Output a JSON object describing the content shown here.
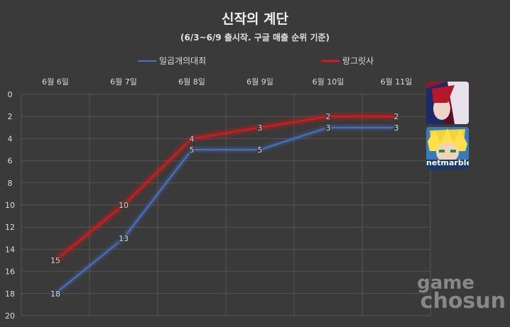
{
  "chart_data": {
    "type": "line",
    "title": "신작의 계단",
    "subtitle": "(6/3~6/9 출시작. 구글 매출 순위 기준)",
    "categories": [
      "6월 6일",
      "6월 7일",
      "6월 8일",
      "6월 9일",
      "6월 10일",
      "6월 11일"
    ],
    "y_ticks": [
      "0",
      "2",
      "4",
      "6",
      "8",
      "10",
      "12",
      "14",
      "16",
      "18",
      "20"
    ],
    "ylim": [
      0,
      20
    ],
    "y_inverted": true,
    "grid": true,
    "legend_position": "top",
    "series": [
      {
        "name": "일곱개의대죄",
        "values": [
          18,
          13,
          5,
          5,
          3,
          3
        ],
        "color": "#4a72c4",
        "data_labels": [
          "18",
          "13",
          "5",
          "5",
          "3",
          "3"
        ]
      },
      {
        "name": "랑그릿사",
        "values": [
          15,
          10,
          4,
          3,
          2,
          2
        ],
        "color": "#d21a1a",
        "data_labels": [
          "15",
          "10",
          "4",
          "3",
          "2",
          "2"
        ]
      }
    ]
  },
  "icons": {
    "langrisser": "langrisser-game-icon",
    "seven_deadly_sins": "seven-deadly-sins-game-icon",
    "seven_deadly_sins_label": "netmarble"
  },
  "watermark": {
    "line1": "game",
    "line2": "chosun"
  }
}
